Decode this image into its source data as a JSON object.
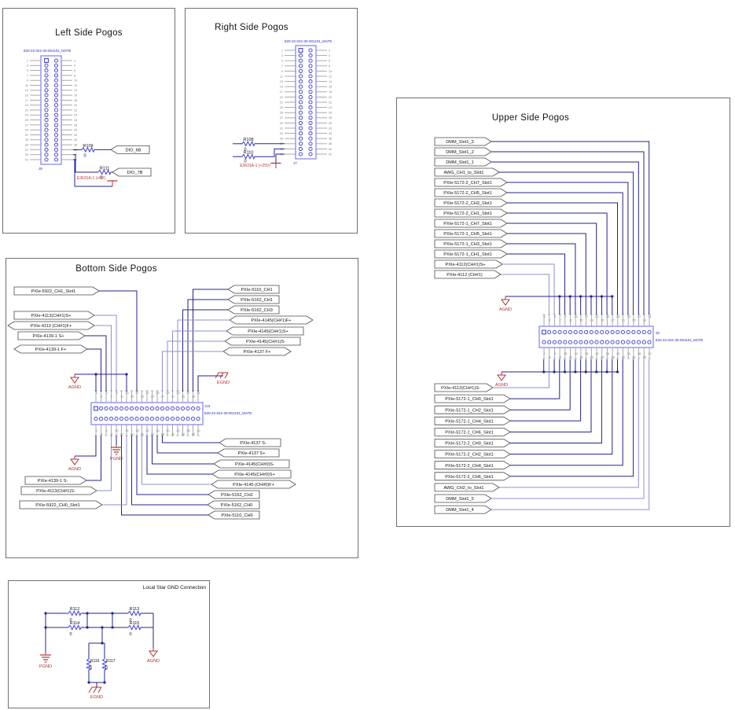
{
  "blocks": {
    "left": {
      "title": "Left Side Pogos",
      "connector": {
        "ref": "J8",
        "part": "820-22-042-30-001101_MATE",
        "pins": 42
      },
      "resistors": [
        {
          "ref": "R109",
          "value": "0"
        },
        {
          "ref": "R111",
          "value": "0"
        }
      ],
      "net_labels": [
        "DIO_6B",
        "DIO_7B"
      ],
      "power_port": "E3631A-1 (+6V)"
    },
    "right": {
      "title": "Right Side Pogos",
      "connector": {
        "ref": "J7",
        "part": "820-22-042-30-001101_MATE",
        "pins": 42
      },
      "resistors": [
        {
          "ref": "R108",
          "value": "0"
        },
        {
          "ref": "R110",
          "value": "0"
        }
      ],
      "power_port": "E3631A-1 (+25V)"
    },
    "upper": {
      "title": "Upper Side Pogos",
      "connector": {
        "ref": "J9",
        "part": "820-22-042-30-001101_MATE",
        "pins": 42
      },
      "net_labels_top": [
        "DMM_Slot1_3",
        "DMM_Slot1_2",
        "DMM_Slot1_1",
        "AWG_CH1_to_Slot1",
        "PXIe-5172-2_CH7_Slot1",
        "PXIe-5172-2_CH5_Slot1",
        "PXIe-5172-2_CH3_Slot1",
        "PXIe-5172-2_CH1_Slot1",
        "PXIe-5172-1_CH7_Slot1",
        "PXIe-5172-1_CH5_Slot1",
        "PXIe-5172-1_CH3_Slot1",
        "PXIe-5172-1_CH1_Slot1",
        "PXIe-4112(CH#1)S+",
        "PXIe-4112 (CH#1)"
      ],
      "net_labels_bottom": [
        "PXIe-4112(CH#1)S-",
        "PXIe-5172-1_CH0_Slot1",
        "PXIe-5172-1_CH2_Slot1",
        "PXIe-5172-1_CH4_Slot1",
        "PXIe-5172-1_CH6_Slot1",
        "PXIe-5172-2_CH0_Slot1",
        "PXIe-5172-2_CH2_Slot1",
        "PXIe-5172-2_CH4_Slot1",
        "PXIe-5172-2_CH6_Slot1",
        "AWG_CH2_to_Slot1",
        "DMM_Slot1_5",
        "DMM_Slot1_4"
      ],
      "grounds": [
        "AGND",
        "AGND"
      ]
    },
    "bottom": {
      "title": "Bottom Side Pogos",
      "connector": {
        "ref": "J10",
        "part": "820-22-042-30-001101_MATE",
        "pins": 42
      },
      "net_labels_left_top": [
        "PXIe-5922_CH1_Slot1",
        "PXIe-4113(CH#1)S+",
        "PXIe-4113 (CH#1)F+",
        "PXIe-4139-1 S+",
        "PXIe-4139-1 F+"
      ],
      "net_labels_right_top": [
        "PXIe-5110_CH1",
        "PXIe-5162_CH1",
        "PXIe-5162_CH3",
        "PXIe-4145(CH#1)F+",
        "PXIe-4145(CH#1)S+",
        "PXIe-4145(CH#1)S-",
        "PXIe-4137 F+"
      ],
      "net_labels_right_bottom": [
        "PXIe-4137 S-",
        "PXIe-4137 S+",
        "PXIe-4145(CH#0)S-",
        "PXIe-4145(CH#0)S+",
        "PXIe-4145 (CH#0)F+",
        "PXIe-5162_CH2",
        "PXIe-5162_CH0",
        "PXIe-5110_CH0"
      ],
      "net_labels_left_bottom": [
        "PXIe-4139-1 S-",
        "PXIe-4113(CH#1)S-",
        "PXIe-5922_CH0_Slot1"
      ],
      "grounds": [
        "AGND",
        "EGND",
        "PGND",
        "AGND"
      ]
    },
    "star": {
      "title": "Local Star GND Connection",
      "resistors": [
        {
          "ref": "R112",
          "value": "0"
        },
        {
          "ref": "R113",
          "value": "0"
        },
        {
          "ref": "R114",
          "value": "0"
        },
        {
          "ref": "R115",
          "value": "0"
        },
        {
          "ref": "R116",
          "value": "0"
        },
        {
          "ref": "R117",
          "value": "0"
        }
      ],
      "grounds": [
        "PGND",
        "AGND",
        "EGND"
      ]
    }
  },
  "colors": {
    "wire_dark": "#23238c",
    "wire_light": "#8f8fce",
    "connector_body": "#7d7df2",
    "pin_circle": "#3535cf",
    "blue_text": "#1f1fd0",
    "red": "#b13333",
    "stub": "#a0a0a0",
    "pin_number": "#7d7d7d",
    "label_stroke": "#4a4a4a",
    "text": "#111111"
  }
}
